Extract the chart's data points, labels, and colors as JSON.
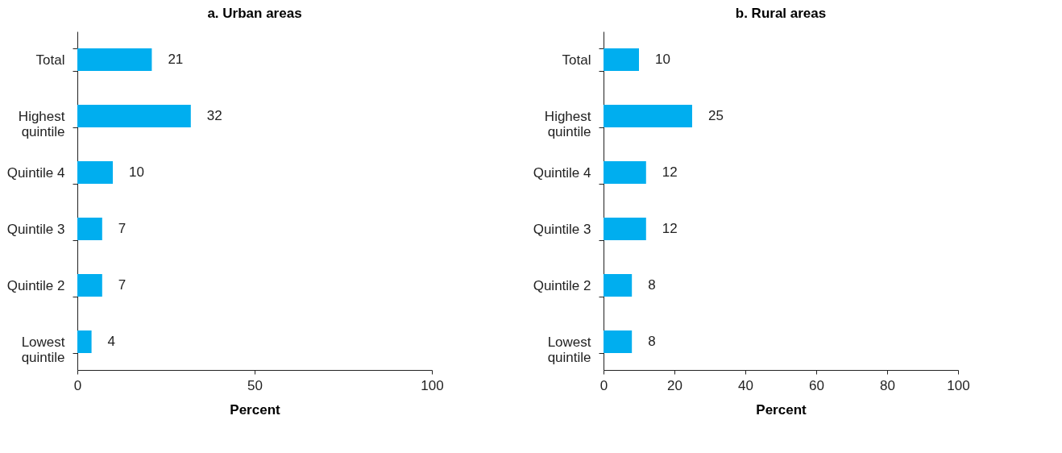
{
  "chart_data": [
    {
      "type": "bar",
      "orientation": "horizontal",
      "title": "a. Urban areas",
      "xlabel": "Percent",
      "categories": [
        "Total",
        "Highest quintile",
        "Quintile 4",
        "Quintile 3",
        "Quintile 2",
        "Lowest quintile"
      ],
      "values": [
        21,
        32,
        10,
        7,
        7,
        4
      ],
      "color": "#00aeef",
      "xlim": [
        0,
        100
      ],
      "xticks": [
        0,
        50,
        100
      ],
      "data_labels": true,
      "grid": false
    },
    {
      "type": "bar",
      "orientation": "horizontal",
      "title": "b. Rural areas",
      "xlabel": "Percent",
      "categories": [
        "Total",
        "Highest quintile",
        "Quintile 4",
        "Quintile 3",
        "Quintile 2",
        "Lowest quintile"
      ],
      "values": [
        10,
        25,
        12,
        12,
        8,
        8
      ],
      "color": "#00aeef",
      "xlim": [
        0,
        100
      ],
      "xticks": [
        0,
        20,
        40,
        60,
        80,
        100
      ],
      "data_labels": true,
      "grid": false
    }
  ]
}
